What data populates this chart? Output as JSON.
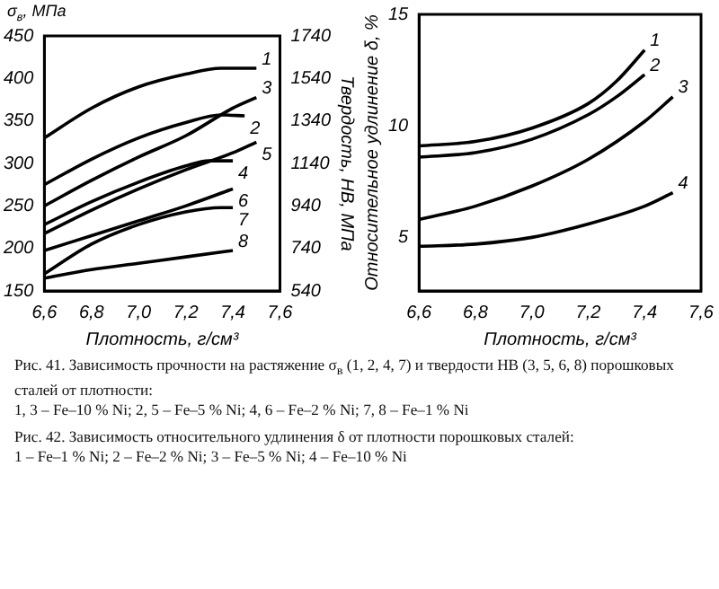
{
  "chart_data": [
    {
      "type": "line",
      "xlabel": "Плотность, г/см³",
      "ylabel": "σ$_{в}$, МПа",
      "y2label": "Твердость, HB, МПа",
      "xlim": [
        6.6,
        7.6
      ],
      "xticks": [
        {
          "value": 6.6,
          "label": "6,6"
        },
        {
          "value": 6.8,
          "label": "6,8"
        },
        {
          "value": 7.0,
          "label": "7,0"
        },
        {
          "value": 7.2,
          "label": "7,2"
        },
        {
          "value": 7.4,
          "label": "7,4"
        },
        {
          "value": 7.6,
          "label": "7,6"
        }
      ],
      "ylim": [
        150,
        450
      ],
      "yticks": [
        150,
        200,
        250,
        300,
        350,
        400,
        450
      ],
      "y2lim": [
        540,
        1740
      ],
      "y2ticks": [
        540,
        740,
        940,
        1140,
        1340,
        1540,
        1740
      ],
      "grid": false,
      "legend": false,
      "marker": "none",
      "line_style": "solid",
      "series": [
        {
          "name": "1",
          "color": "#000000",
          "x": [
            6.6,
            6.8,
            7.0,
            7.2,
            7.35,
            7.5
          ],
          "values": [
            330,
            365,
            390,
            405,
            412,
            412
          ]
        },
        {
          "name": "2",
          "color": "#000000",
          "x": [
            6.6,
            6.8,
            7.0,
            7.2,
            7.35,
            7.45
          ],
          "values": [
            275,
            305,
            330,
            348,
            357,
            356
          ]
        },
        {
          "name": "3",
          "color": "#000000",
          "axis": "y2",
          "x": [
            6.6,
            6.8,
            7.0,
            7.2,
            7.4,
            7.5
          ],
          "values": [
            940,
            1060,
            1170,
            1270,
            1400,
            1450
          ]
        },
        {
          "name": "4",
          "color": "#000000",
          "x": [
            6.6,
            6.8,
            7.0,
            7.2,
            7.3,
            7.4
          ],
          "values": [
            228,
            255,
            278,
            297,
            303,
            303
          ]
        },
        {
          "name": "5",
          "color": "#000000",
          "axis": "y2",
          "x": [
            6.6,
            6.8,
            7.0,
            7.2,
            7.4,
            7.5
          ],
          "values": [
            810,
            920,
            1020,
            1110,
            1190,
            1240
          ]
        },
        {
          "name": "6",
          "color": "#000000",
          "axis": "y2",
          "x": [
            6.6,
            6.8,
            7.0,
            7.2,
            7.4
          ],
          "values": [
            730,
            800,
            870,
            940,
            1020
          ]
        },
        {
          "name": "7",
          "color": "#000000",
          "x": [
            6.6,
            6.8,
            7.0,
            7.2,
            7.35,
            7.4
          ],
          "values": [
            170,
            205,
            228,
            243,
            248,
            248
          ]
        },
        {
          "name": "8",
          "color": "#000000",
          "axis": "y2",
          "x": [
            6.6,
            6.8,
            7.0,
            7.2,
            7.4
          ],
          "values": [
            600,
            640,
            670,
            700,
            730
          ]
        }
      ],
      "annotations": [
        "Рис. 41. Зависимость прочности на растяжение σ$_{в}$ (1, 2, 4, 7) и твердости HB (3, 5, 6, 8) порошковых сталей от плотности:",
        "1, 3 – Fe–10 % Ni; 2, 5 – Fe–5 % Ni; 4, 6 – Fe–2 % Ni; 7, 8 – Fe–1 % Ni"
      ]
    },
    {
      "type": "line",
      "xlabel": "Плотность, г/см³",
      "ylabel": "Относительное удлинение δ, %",
      "xlim": [
        6.6,
        7.6
      ],
      "xticks": [
        {
          "value": 6.6,
          "label": "6,6"
        },
        {
          "value": 6.8,
          "label": "6,8"
        },
        {
          "value": 7.0,
          "label": "7,0"
        },
        {
          "value": 7.2,
          "label": "7,2"
        },
        {
          "value": 7.4,
          "label": "7,4"
        },
        {
          "value": 7.6,
          "label": "7,6"
        }
      ],
      "ylim": [
        2.6,
        15
      ],
      "yticks": [
        5,
        10,
        15
      ],
      "grid": false,
      "legend": false,
      "marker": "none",
      "line_style": "solid",
      "series": [
        {
          "name": "1",
          "color": "#000000",
          "x": [
            6.6,
            6.8,
            7.0,
            7.2,
            7.3,
            7.4
          ],
          "values": [
            9.1,
            9.3,
            9.9,
            11.0,
            12.0,
            13.4
          ]
        },
        {
          "name": "2",
          "color": "#000000",
          "x": [
            6.6,
            6.8,
            7.0,
            7.2,
            7.3,
            7.4
          ],
          "values": [
            8.6,
            8.8,
            9.4,
            10.5,
            11.3,
            12.3
          ]
        },
        {
          "name": "3",
          "color": "#000000",
          "x": [
            6.6,
            6.8,
            7.0,
            7.2,
            7.4,
            7.5
          ],
          "values": [
            5.8,
            6.4,
            7.3,
            8.5,
            10.2,
            11.3
          ]
        },
        {
          "name": "4",
          "color": "#000000",
          "x": [
            6.6,
            6.8,
            7.0,
            7.2,
            7.4,
            7.5
          ],
          "values": [
            4.6,
            4.7,
            5.0,
            5.6,
            6.4,
            7.0
          ]
        }
      ],
      "annotations": [
        "Рис. 42. Зависимость относительного удлинения δ от плотности порошковых сталей:",
        "1 – Fe–1 % Ni; 2 – Fe–2 % Ni; 3 – Fe–5 % Ni; 4 – Fe–10 % Ni"
      ]
    }
  ]
}
